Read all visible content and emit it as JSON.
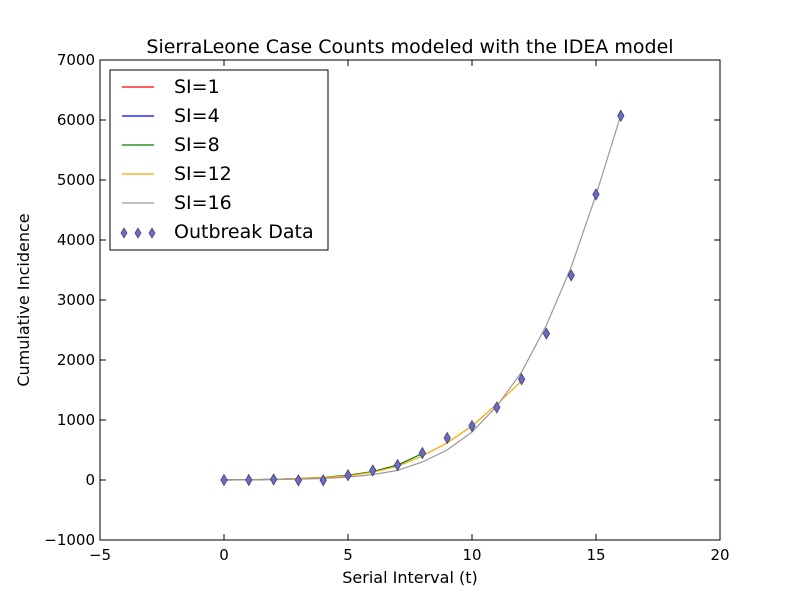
{
  "chart_data": {
    "type": "line",
    "title": "SierraLeone Case Counts modeled with the IDEA model",
    "xlabel": "Serial Interval (t)",
    "ylabel": "Cumulative Incidence",
    "xlim": [
      -5,
      20
    ],
    "ylim": [
      -1000,
      7000
    ],
    "xticks": [
      "-5",
      "0",
      "5",
      "10",
      "15",
      "20"
    ],
    "yticks": [
      "-1000",
      "0",
      "1000",
      "2000",
      "3000",
      "4000",
      "5000",
      "6000",
      "7000"
    ],
    "grid": false,
    "legend_position": "upper-left",
    "series": [
      {
        "name": "SI=1",
        "kind": "line",
        "color": "#ff0000",
        "x": [
          0,
          1
        ],
        "y": [
          0,
          5
        ]
      },
      {
        "name": "SI=4",
        "kind": "line",
        "color": "#0000ff",
        "x": [
          0,
          1,
          2,
          3,
          4
        ],
        "y": [
          0,
          3,
          10,
          20,
          35
        ]
      },
      {
        "name": "SI=8",
        "kind": "line",
        "color": "#008000",
        "x": [
          0,
          1,
          2,
          3,
          4,
          5,
          6,
          7,
          8
        ],
        "y": [
          0,
          5,
          12,
          25,
          45,
          80,
          140,
          250,
          440
        ]
      },
      {
        "name": "SI=12",
        "kind": "line",
        "color": "#ffa500",
        "x": [
          0,
          1,
          2,
          3,
          4,
          5,
          6,
          7,
          8,
          9,
          10,
          11,
          12
        ],
        "y": [
          0,
          5,
          12,
          25,
          42,
          70,
          130,
          230,
          400,
          620,
          900,
          1260,
          1650
        ]
      },
      {
        "name": "SI=16",
        "kind": "line",
        "color": "#999999",
        "x": [
          0,
          1,
          2,
          3,
          4,
          5,
          6,
          7,
          8,
          9,
          10,
          11,
          12,
          13,
          14,
          15,
          16
        ],
        "y": [
          0,
          3,
          8,
          15,
          25,
          50,
          90,
          160,
          300,
          500,
          800,
          1230,
          1800,
          2580,
          3550,
          4750,
          6080
        ]
      },
      {
        "name": "Outbreak Data",
        "kind": "scatter",
        "color": "#6b6bc8",
        "x": [
          0,
          1,
          2,
          3,
          4,
          5,
          6,
          7,
          8,
          9,
          10,
          11,
          12,
          13,
          14,
          15,
          16
        ],
        "y": [
          0,
          0,
          10,
          -5,
          -5,
          80,
          160,
          250,
          450,
          700,
          900,
          1210,
          1680,
          2440,
          3410,
          4760,
          6070
        ]
      }
    ]
  }
}
